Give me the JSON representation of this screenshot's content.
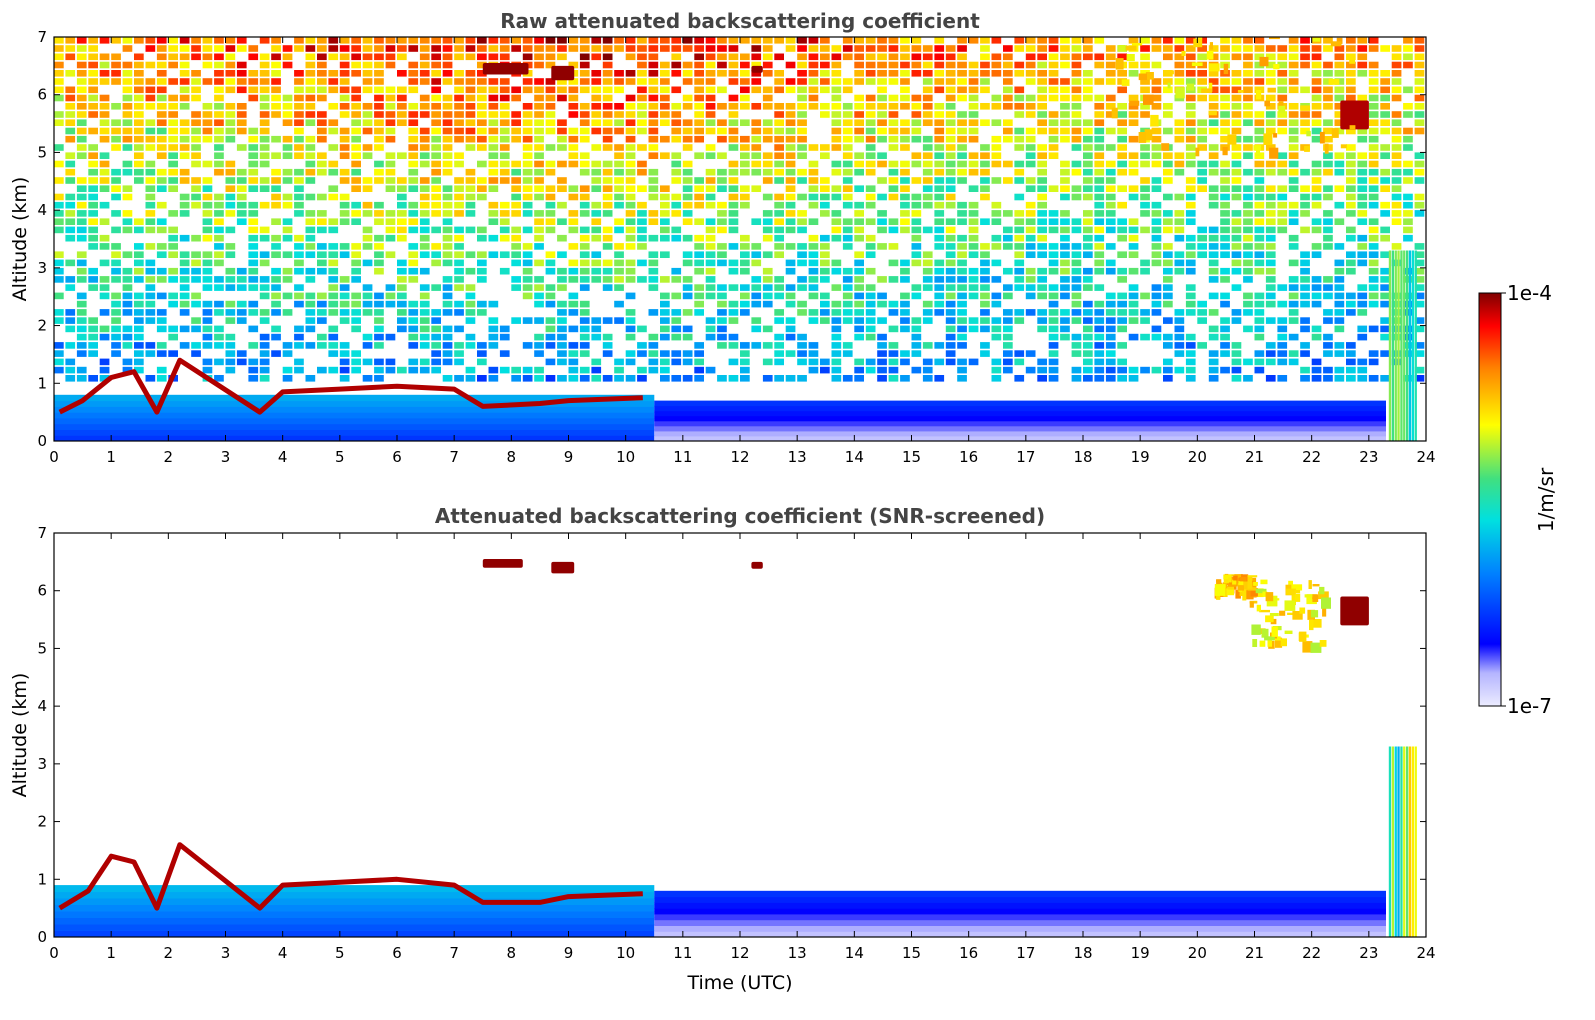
{
  "chart_data": [
    {
      "type": "heatmap",
      "title": "Raw attenuated backscattering coefficient",
      "xlabel": "",
      "ylabel": "Altitude (km)",
      "xlim": [
        0,
        24
      ],
      "ylim": [
        0,
        7
      ],
      "x_ticks": [
        "0",
        "1",
        "2",
        "3",
        "4",
        "5",
        "6",
        "7",
        "8",
        "9",
        "10",
        "11",
        "12",
        "13",
        "14",
        "15",
        "16",
        "17",
        "18",
        "19",
        "20",
        "21",
        "22",
        "23",
        "24"
      ],
      "y_ticks": [
        "0",
        "1",
        "2",
        "3",
        "4",
        "5",
        "6",
        "7"
      ],
      "features": [
        {
          "kind": "aerosol_layer",
          "x": [
            0.0,
            10.5
          ],
          "y": [
            0.0,
            0.8
          ],
          "level": 0.28
        },
        {
          "kind": "boundary_layer",
          "x": [
            10.5,
            23.3
          ],
          "y": [
            0.0,
            0.7
          ],
          "level": 0.12
        },
        {
          "kind": "layer_top",
          "points": [
            [
              0.1,
              0.5
            ],
            [
              0.5,
              0.7
            ],
            [
              1.0,
              1.1
            ],
            [
              1.4,
              1.2
            ],
            [
              1.8,
              0.5
            ],
            [
              2.2,
              1.4
            ],
            [
              3.6,
              0.5
            ],
            [
              4.0,
              0.85
            ],
            [
              5.0,
              0.9
            ],
            [
              6.0,
              0.95
            ],
            [
              7.0,
              0.9
            ],
            [
              7.5,
              0.6
            ],
            [
              8.5,
              0.65
            ],
            [
              9.0,
              0.7
            ],
            [
              10.3,
              0.75
            ]
          ],
          "level": 0.97
        },
        {
          "kind": "cloud",
          "x": [
            7.5,
            8.3
          ],
          "y": [
            6.35,
            6.55
          ],
          "level": 0.99
        },
        {
          "kind": "cloud",
          "x": [
            8.7,
            9.1
          ],
          "y": [
            6.25,
            6.5
          ],
          "level": 0.99
        },
        {
          "kind": "cloud",
          "x": [
            12.2,
            12.4
          ],
          "y": [
            6.38,
            6.5
          ],
          "level": 0.99
        },
        {
          "kind": "cloud",
          "x": [
            22.5,
            23.0
          ],
          "y": [
            5.4,
            5.9
          ],
          "level": 0.97
        },
        {
          "kind": "high_cloud",
          "x": [
            18.5,
            22.8
          ],
          "y": [
            5.0,
            7.0
          ],
          "level": 0.72
        },
        {
          "kind": "column",
          "x": [
            23.35,
            23.85
          ],
          "y": [
            0.0,
            3.3
          ],
          "level": 0.55
        },
        {
          "kind": "noise_gradient",
          "y": [
            1.0,
            7.0
          ],
          "level": [
            0.35,
            0.78
          ]
        }
      ]
    },
    {
      "type": "heatmap",
      "title": "Attenuated backscattering coefficient (SNR-screened)",
      "xlabel": "Time (UTC)",
      "ylabel": "Altitude (km)",
      "xlim": [
        0,
        24
      ],
      "ylim": [
        0,
        7
      ],
      "x_ticks": [
        "0",
        "1",
        "2",
        "3",
        "4",
        "5",
        "6",
        "7",
        "8",
        "9",
        "10",
        "11",
        "12",
        "13",
        "14",
        "15",
        "16",
        "17",
        "18",
        "19",
        "20",
        "21",
        "22",
        "23",
        "24"
      ],
      "y_ticks": [
        "0",
        "1",
        "2",
        "3",
        "4",
        "5",
        "6",
        "7"
      ],
      "features": [
        {
          "kind": "aerosol_layer",
          "x": [
            0.0,
            10.5
          ],
          "y": [
            0.0,
            0.9
          ],
          "level": 0.3
        },
        {
          "kind": "boundary_layer",
          "x": [
            10.5,
            23.3
          ],
          "y": [
            0.0,
            0.8
          ],
          "level": 0.12
        },
        {
          "kind": "layer_top",
          "points": [
            [
              0.1,
              0.5
            ],
            [
              0.6,
              0.8
            ],
            [
              1.0,
              1.4
            ],
            [
              1.4,
              1.3
            ],
            [
              1.8,
              0.5
            ],
            [
              2.2,
              1.6
            ],
            [
              3.6,
              0.5
            ],
            [
              4.0,
              0.9
            ],
            [
              5.0,
              0.95
            ],
            [
              6.0,
              1.0
            ],
            [
              7.0,
              0.9
            ],
            [
              7.5,
              0.6
            ],
            [
              8.5,
              0.6
            ],
            [
              9.0,
              0.7
            ],
            [
              10.3,
              0.75
            ]
          ],
          "level": 0.97
        },
        {
          "kind": "cloud",
          "x": [
            7.5,
            8.2
          ],
          "y": [
            6.4,
            6.55
          ],
          "level": 0.99
        },
        {
          "kind": "cloud",
          "x": [
            8.7,
            9.1
          ],
          "y": [
            6.3,
            6.5
          ],
          "level": 0.99
        },
        {
          "kind": "cloud",
          "x": [
            12.2,
            12.4
          ],
          "y": [
            6.38,
            6.5
          ],
          "level": 0.99
        },
        {
          "kind": "cloud",
          "x": [
            22.5,
            23.0
          ],
          "y": [
            5.4,
            5.9
          ],
          "level": 0.99
        },
        {
          "kind": "high_cloud",
          "x": [
            20.3,
            21.0
          ],
          "y": [
            6.0,
            6.3
          ],
          "level": 0.75
        },
        {
          "kind": "high_cloud",
          "x": [
            20.9,
            22.2
          ],
          "y": [
            5.1,
            6.2
          ],
          "level": 0.7
        },
        {
          "kind": "column",
          "x": [
            23.35,
            23.85
          ],
          "y": [
            0.0,
            3.3
          ],
          "level": 0.55
        }
      ]
    }
  ],
  "colorbar": {
    "max_label": "1e-4",
    "min_label": "1e-7",
    "unit_label": "1/m/sr",
    "scale": "log",
    "range": [
      1e-07,
      0.0001
    ]
  },
  "colors": {
    "title": "#444444",
    "colormap": [
      "#e8e8ff",
      "#0000ff",
      "#0080ff",
      "#00ffff",
      "#ffff00",
      "#ff8000",
      "#ff0000",
      "#800000"
    ]
  }
}
